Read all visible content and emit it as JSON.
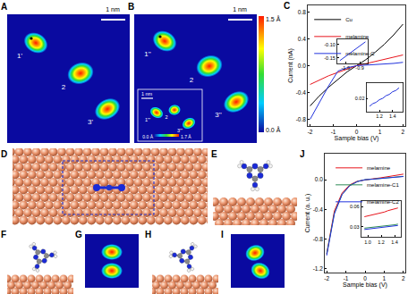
{
  "panels": {
    "A": {
      "label": "A",
      "molecules": [
        "1'",
        "2",
        "3'"
      ],
      "scale_bar": "1 nm"
    },
    "B": {
      "label": "B",
      "molecules": [
        "1''",
        "2",
        "3''"
      ],
      "scale_bar": "1 nm",
      "colorbar": {
        "max_label": "1.5 Å",
        "min_label": "0.0 Å"
      },
      "inset": {
        "molecules": [
          "1'''",
          "2",
          "3'''"
        ],
        "scale_bar": "1 nm",
        "colorbar": {
          "min_label": "0.0 Å",
          "max_label": "1.7 Å"
        }
      }
    },
    "C": {
      "label": "C"
    },
    "D": {
      "label": "D"
    },
    "E": {
      "label": "E"
    },
    "F": {
      "label": "F"
    },
    "G": {
      "label": "G"
    },
    "H": {
      "label": "H"
    },
    "I": {
      "label": "I"
    },
    "J": {
      "label": "J"
    }
  },
  "chart_data": [
    {
      "type": "line",
      "xlabel": "Sample bias (V)",
      "ylabel": "Current (nA)",
      "x": [
        -2,
        -1.6,
        -1.2,
        -0.8,
        -0.4,
        0,
        0.4,
        0.8,
        1.2,
        1.6,
        2
      ],
      "series": [
        {
          "name": "Cu",
          "color": "#000000",
          "values": [
            -0.6,
            -0.45,
            -0.32,
            -0.2,
            -0.09,
            0,
            0.09,
            0.2,
            0.32,
            0.46,
            0.62
          ]
        },
        {
          "name": "melamine",
          "color": "#e8141c",
          "values": [
            -0.28,
            -0.21,
            -0.15,
            -0.1,
            -0.05,
            0,
            0.03,
            0.06,
            0.09,
            0.12,
            0.16
          ]
        },
        {
          "name": "melamine-C",
          "color": "#2233dd",
          "values": [
            -0.8,
            -0.55,
            -0.3,
            -0.08,
            -0.03,
            0,
            0.008,
            0.014,
            0.022,
            0.034,
            0.05
          ]
        }
      ],
      "xlim": [
        -2.1,
        2.1
      ],
      "ylim": [
        -0.9,
        0.9
      ],
      "xticks": [
        -2,
        -1,
        0,
        1,
        2
      ],
      "yticks": [
        -0.8,
        -0.4,
        {
          "value": 0,
          "label": "0.0"
        },
        0.4,
        0.8
      ],
      "legend": "upper left"
    },
    {
      "type": "line",
      "x": [
        -1.04,
        -1.02,
        -1.0,
        -0.98,
        -0.96,
        -0.94,
        -0.92,
        -0.9,
        -0.88,
        -0.86
      ],
      "series": [
        {
          "color": "#2233dd",
          "values": [
            -0.16,
            -0.152,
            -0.146,
            -0.138,
            -0.13,
            -0.122,
            -0.113,
            -0.106,
            -0.098,
            -0.09
          ]
        }
      ],
      "xlim": [
        -1.06,
        -0.84
      ],
      "ylim": [
        -0.17,
        -0.08
      ],
      "xticks": [
        {
          "value": -1,
          "label": "-1.0"
        },
        -0.9
      ],
      "yticks": [
        {
          "value": -0.1,
          "label": "-0.10"
        },
        -0.15
      ]
    },
    {
      "type": "line",
      "x": [
        1.05,
        1.1,
        1.15,
        1.2,
        1.25,
        1.3,
        1.35,
        1.4,
        1.45,
        1.5
      ],
      "series": [
        {
          "color": "#2233dd",
          "values": [
            0.014,
            0.016,
            0.017,
            0.019,
            0.02,
            0.022,
            0.023,
            0.025,
            0.026,
            0.028
          ]
        }
      ],
      "xlim": [
        1.0,
        1.55
      ],
      "ylim": [
        0.01,
        0.032
      ],
      "xticks": [
        1.2,
        1.4
      ],
      "yticks": [
        0.02
      ]
    },
    {
      "type": "line",
      "xlabel": "Sample bias (V)",
      "ylabel": "Current (a. u.)",
      "x": [
        -2,
        -1.6,
        -1.2,
        -0.8,
        -0.4,
        0,
        0.4,
        0.8,
        1.2,
        1.6,
        2
      ],
      "series": [
        {
          "name": "melamine",
          "color": "#e8141c",
          "values": [
            -1.0,
            -0.42,
            -0.18,
            -0.07,
            -0.02,
            0,
            0.012,
            0.025,
            0.04,
            0.055,
            0.075
          ]
        },
        {
          "name": "melamine-C1",
          "color": "#2e8b57",
          "values": [
            -1.0,
            -0.45,
            -0.2,
            -0.08,
            -0.025,
            0,
            0.008,
            0.016,
            0.025,
            0.034,
            0.045
          ]
        },
        {
          "name": "melamine-C2",
          "color": "#2233dd",
          "values": [
            -1.02,
            -0.46,
            -0.2,
            -0.08,
            -0.025,
            0,
            0.007,
            0.015,
            0.024,
            0.032,
            0.043
          ]
        }
      ],
      "xlim": [
        -2.1,
        2.1
      ],
      "ylim": [
        -1.25,
        0.35
      ],
      "xticks": [
        -2,
        -1,
        0,
        1,
        2
      ],
      "yticks": [
        -1.2,
        -0.8,
        -0.4,
        {
          "value": 0,
          "label": "0.0"
        }
      ],
      "legend": "upper right"
    },
    {
      "type": "line",
      "x": [
        0.95,
        1.0,
        1.05,
        1.1,
        1.15,
        1.2,
        1.25,
        1.3,
        1.35,
        1.4,
        1.45
      ],
      "series": [
        {
          "color": "#e8141c",
          "values": [
            0.045,
            0.046,
            0.047,
            0.048,
            0.05,
            0.051,
            0.052,
            0.054,
            0.055,
            0.056,
            0.058
          ]
        },
        {
          "color": "#2e8b57",
          "values": [
            0.028,
            0.0285,
            0.029,
            0.0295,
            0.03,
            0.031,
            0.0315,
            0.032,
            0.0325,
            0.033,
            0.034
          ]
        },
        {
          "color": "#2233dd",
          "values": [
            0.026,
            0.0265,
            0.027,
            0.0275,
            0.028,
            0.029,
            0.0295,
            0.03,
            0.0305,
            0.031,
            0.032
          ]
        }
      ],
      "xlim": [
        0.9,
        1.5
      ],
      "ylim": [
        0.015,
        0.068
      ],
      "xticks": [
        {
          "value": 1,
          "label": "1.0"
        },
        1.2,
        1.4
      ],
      "yticks": [
        0.03,
        0.06
      ]
    }
  ]
}
